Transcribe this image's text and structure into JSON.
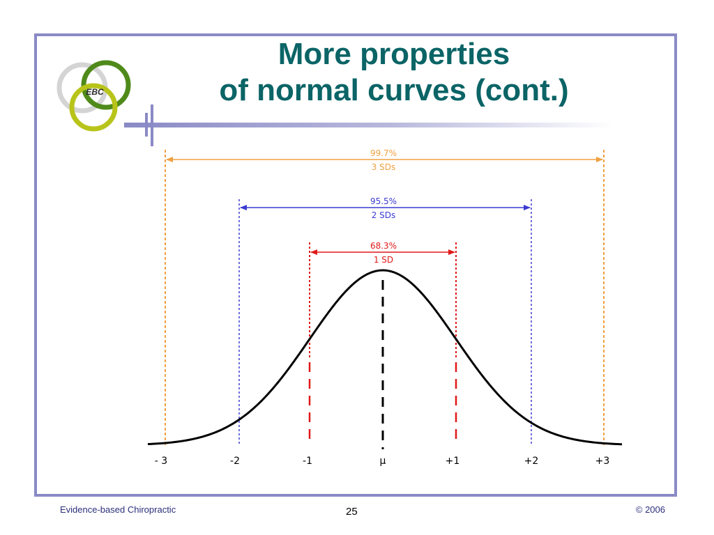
{
  "slide": {
    "title_line1": "More properties",
    "title_line2": "of normal curves (cont.)",
    "logo_text": "EBC"
  },
  "colors": {
    "frame": "#8a8ac6",
    "title": "#0b6466",
    "three_sd": "#f0a040",
    "two_sd": "#3b3bd0",
    "one_sd": "#e01818",
    "curve": "#000000",
    "logo_gray": "#d0d0d0",
    "logo_green": "#4f8a1a",
    "logo_yellow": "#b8c41a"
  },
  "diagram": {
    "ranges": [
      {
        "name": "three-sd",
        "percent": "99.7%",
        "label": "3 SDs"
      },
      {
        "name": "two-sd",
        "percent": "95.5%",
        "label": "2 SDs"
      },
      {
        "name": "one-sd",
        "percent": "68.3%",
        "label": "1 SD"
      }
    ],
    "axis_labels": [
      "- 3",
      "-2",
      "-1",
      "μ",
      "+1",
      "+2",
      "+3"
    ]
  },
  "footer": {
    "left": "Evidence-based Chiropractic",
    "page_number": "25",
    "right": "© 2006"
  }
}
